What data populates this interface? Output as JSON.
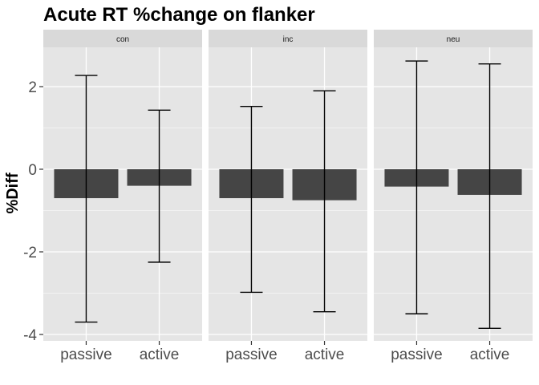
{
  "chart_data": {
    "type": "bar",
    "title": "Acute RT %change on flanker",
    "xlabel": "",
    "ylabel": "%Diff",
    "ylim": [
      -4.2,
      3.0
    ],
    "yticks": [
      2,
      0,
      -2,
      -4
    ],
    "ytick_labels": [
      "2",
      "0",
      "-2",
      "-4"
    ],
    "categories": [
      "passive",
      "active"
    ],
    "grid": true,
    "colors": {
      "bar": "#454545",
      "panel_bg": "#e5e5e5",
      "strip_bg": "#d9d9d9",
      "grid": "#ffffff",
      "errorbar": "#000000"
    },
    "facets": [
      {
        "label": "con",
        "values": [
          -0.7,
          -0.4
        ],
        "error_low": [
          -3.7,
          -2.25
        ],
        "error_high": [
          2.27,
          1.43
        ]
      },
      {
        "label": "inc",
        "values": [
          -0.7,
          -0.75
        ],
        "error_low": [
          -2.98,
          -3.45
        ],
        "error_high": [
          1.52,
          1.9
        ]
      },
      {
        "label": "neu",
        "values": [
          -0.42,
          -0.62
        ],
        "error_low": [
          -3.5,
          -3.85
        ],
        "error_high": [
          2.62,
          2.55
        ]
      }
    ]
  }
}
